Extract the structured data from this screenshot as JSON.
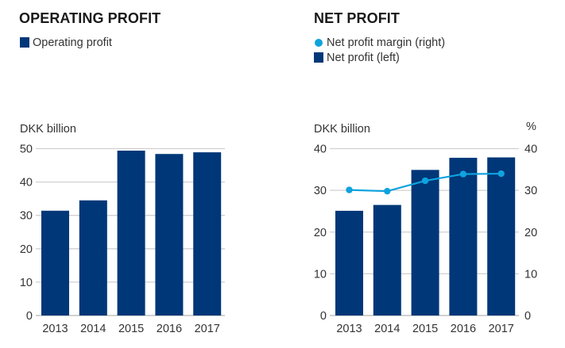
{
  "chart_data": [
    {
      "id": "operating-profit",
      "type": "bar",
      "title": "OPERATING PROFIT",
      "legend": [
        {
          "label": "Operating profit",
          "marker": "square",
          "color": "#003778"
        }
      ],
      "ylabel": "DKK billion",
      "xlabel": "",
      "categories": [
        "2013",
        "2014",
        "2015",
        "2016",
        "2017"
      ],
      "series": [
        {
          "name": "Operating profit",
          "values": [
            31.4,
            34.5,
            49.4,
            48.4,
            48.9
          ],
          "color": "#003778"
        }
      ],
      "ylim": [
        0,
        50
      ],
      "yticks": [
        "0",
        "10",
        "20",
        "30",
        "40",
        "50"
      ],
      "grid": true
    },
    {
      "id": "net-profit",
      "type": "bar",
      "title": "NET PROFIT",
      "legend": [
        {
          "label": "Net profit margin (right)",
          "marker": "dot",
          "color": "#0fa3de"
        },
        {
          "label": "Net profit (left)",
          "marker": "square",
          "color": "#003778"
        }
      ],
      "ylabel": "DKK billion",
      "ylabel_right": "%",
      "xlabel": "",
      "categories": [
        "2013",
        "2014",
        "2015",
        "2016",
        "2017"
      ],
      "series": [
        {
          "name": "Net profit (left)",
          "type": "bar",
          "axis": "left",
          "values": [
            25.1,
            26.5,
            34.9,
            37.8,
            37.9
          ],
          "color": "#003778"
        },
        {
          "name": "Net profit margin (right)",
          "type": "line",
          "axis": "right",
          "values": [
            30.1,
            29.8,
            32.3,
            33.9,
            34.0
          ],
          "color": "#0fa3de"
        }
      ],
      "ylim": [
        0,
        40
      ],
      "ylim_right": [
        0,
        40
      ],
      "yticks": [
        "0",
        "10",
        "20",
        "30",
        "40"
      ],
      "yticks_right": [
        "0",
        "10",
        "20",
        "30",
        "40"
      ],
      "grid": true
    }
  ]
}
